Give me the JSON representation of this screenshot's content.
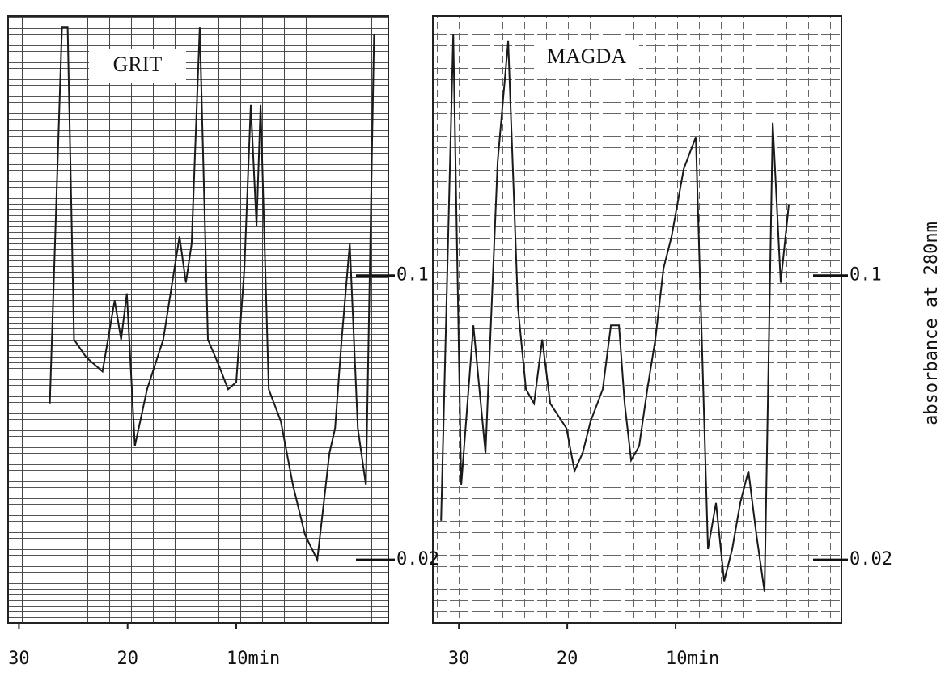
{
  "chart_data": [
    {
      "type": "line",
      "title": "GRIT",
      "color": "#1a1a1a",
      "x": [
        27.16,
        26.04,
        25.52,
        24.93,
        23.81,
        22.31,
        21.19,
        20.6,
        20.07,
        19.33,
        18.21,
        16.72,
        15.22,
        14.63,
        14.1,
        13.36,
        12.61,
        11.64,
        10.75,
        10.0,
        9.25,
        8.66,
        8.13,
        7.76,
        7.01,
        5.9,
        4.78,
        3.66,
        2.54,
        1.42,
        0.9,
        0.3,
        -0.45,
        -1.19,
        -1.94,
        -2.69
      ],
      "values": [
        0.064,
        0.17,
        0.17,
        0.082,
        0.077,
        0.073,
        0.093,
        0.082,
        0.095,
        0.052,
        0.068,
        0.082,
        0.111,
        0.098,
        0.109,
        0.17,
        0.082,
        0.075,
        0.068,
        0.07,
        0.102,
        0.148,
        0.114,
        0.148,
        0.068,
        0.059,
        0.041,
        0.027,
        0.02,
        0.05,
        0.057,
        0.082,
        0.109,
        0.057,
        0.041,
        0.168
      ],
      "xlim": [
        31,
        -4
      ],
      "xticks": [
        30,
        20,
        {
          "value": 10,
          "label": "10min"
        }
      ],
      "ylim": [
        0,
        0.173
      ],
      "yticks": [
        0.1,
        0.02
      ]
    },
    {
      "type": "line",
      "title": "MAGDA",
      "color": "#1a1a1a",
      "ylabel": "absorbance at 280nm",
      "x": [
        31.64,
        30.52,
        29.78,
        28.66,
        27.54,
        26.42,
        25.45,
        24.55,
        23.81,
        23.06,
        22.31,
        21.57,
        20.07,
        19.33,
        18.58,
        17.84,
        16.72,
        15.97,
        15.22,
        14.7,
        14.1,
        13.36,
        12.61,
        11.87,
        11.12,
        10.37,
        9.25,
        8.13,
        7.01,
        6.27,
        5.52,
        4.78,
        4.03,
        3.28,
        2.54,
        1.79,
        1.04,
        0.3,
        -0.45
      ],
      "values": [
        0.031,
        0.168,
        0.041,
        0.086,
        0.05,
        0.132,
        0.166,
        0.091,
        0.068,
        0.064,
        0.082,
        0.064,
        0.057,
        0.045,
        0.05,
        0.059,
        0.068,
        0.086,
        0.086,
        0.064,
        0.048,
        0.052,
        0.068,
        0.082,
        0.102,
        0.111,
        0.13,
        0.139,
        0.023,
        0.036,
        0.014,
        0.023,
        0.036,
        0.045,
        0.027,
        0.011,
        0.143,
        0.098,
        0.12
      ],
      "xlim": [
        32.4,
        -5.3
      ],
      "xticks": [
        30,
        20,
        {
          "value": 10,
          "label": "10min"
        }
      ],
      "ylim": [
        0,
        0.173
      ],
      "yticks": [
        0.1,
        0.02
      ]
    }
  ]
}
